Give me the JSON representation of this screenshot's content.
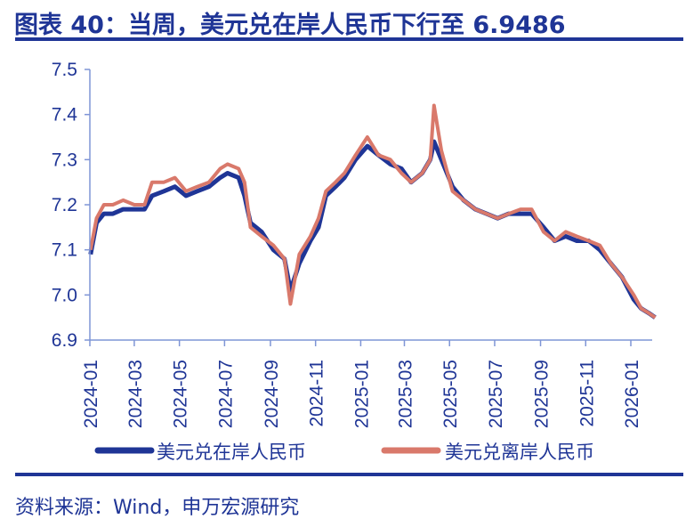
{
  "title": "图表 40：当周，美元兑在岸人民币下行至 6.9486",
  "source": "资料来源：Wind，申万宏源研究",
  "chart_data": {
    "type": "line",
    "title": "图表 40：当周，美元兑在岸人民币下行至 6.9486",
    "xlabel": "",
    "ylabel": "",
    "ylim": [
      6.9,
      7.5
    ],
    "yticks": [
      "6.9",
      "7.0",
      "7.1",
      "7.2",
      "7.3",
      "7.4",
      "7.5"
    ],
    "xticks": [
      "2024-01",
      "2024-03",
      "2024-05",
      "2024-07",
      "2024-09",
      "2024-11",
      "2025-01",
      "2025-03",
      "2025-05",
      "2025-07",
      "2025-09",
      "2025-11",
      "2026-01"
    ],
    "grid": false,
    "legend": "bottom",
    "x": [
      "2024-01-02",
      "2024-01-10",
      "2024-01-20",
      "2024-02-01",
      "2024-02-15",
      "2024-03-01",
      "2024-03-15",
      "2024-03-25",
      "2024-04-10",
      "2024-04-25",
      "2024-05-10",
      "2024-05-25",
      "2024-06-10",
      "2024-06-25",
      "2024-07-05",
      "2024-07-20",
      "2024-07-28",
      "2024-08-05",
      "2024-08-20",
      "2024-09-05",
      "2024-09-20",
      "2024-09-28",
      "2024-10-10",
      "2024-10-25",
      "2024-11-05",
      "2024-11-15",
      "2024-11-28",
      "2024-12-10",
      "2024-12-25",
      "2025-01-10",
      "2025-01-25",
      "2025-02-10",
      "2025-02-25",
      "2025-03-10",
      "2025-03-25",
      "2025-04-05",
      "2025-04-10",
      "2025-04-20",
      "2025-05-05",
      "2025-05-20",
      "2025-06-05",
      "2025-06-20",
      "2025-07-05",
      "2025-07-20",
      "2025-08-05",
      "2025-08-20",
      "2025-09-05",
      "2025-09-20",
      "2025-10-05",
      "2025-10-20",
      "2025-11-05",
      "2025-11-20",
      "2025-12-05",
      "2025-12-20",
      "2026-01-05",
      "2026-01-15",
      "2026-01-25",
      "2026-02-03"
    ],
    "series": [
      {
        "name": "美元兑在岸人民币",
        "color": "#1f3596",
        "values": [
          7.09,
          7.16,
          7.18,
          7.18,
          7.19,
          7.19,
          7.19,
          7.22,
          7.23,
          7.24,
          7.22,
          7.23,
          7.24,
          7.26,
          7.27,
          7.26,
          7.22,
          7.16,
          7.14,
          7.1,
          7.08,
          7.01,
          7.07,
          7.12,
          7.15,
          7.22,
          7.24,
          7.26,
          7.3,
          7.33,
          7.31,
          7.29,
          7.28,
          7.25,
          7.27,
          7.3,
          7.34,
          7.3,
          7.24,
          7.21,
          7.19,
          7.18,
          7.17,
          7.18,
          7.18,
          7.18,
          7.15,
          7.12,
          7.13,
          7.12,
          7.12,
          7.1,
          7.07,
          7.04,
          6.99,
          6.97,
          6.96,
          6.95
        ]
      },
      {
        "name": "美元兑离岸人民币",
        "color": "#d9796b",
        "values": [
          7.1,
          7.17,
          7.2,
          7.2,
          7.21,
          7.2,
          7.2,
          7.25,
          7.25,
          7.26,
          7.23,
          7.24,
          7.25,
          7.28,
          7.29,
          7.28,
          7.25,
          7.15,
          7.13,
          7.11,
          7.08,
          6.98,
          7.09,
          7.13,
          7.17,
          7.23,
          7.25,
          7.27,
          7.31,
          7.35,
          7.31,
          7.3,
          7.27,
          7.25,
          7.27,
          7.3,
          7.42,
          7.32,
          7.23,
          7.21,
          7.19,
          7.18,
          7.17,
          7.18,
          7.19,
          7.19,
          7.14,
          7.12,
          7.14,
          7.13,
          7.12,
          7.11,
          7.07,
          7.04,
          7.0,
          6.97,
          6.96,
          6.95
        ]
      }
    ]
  }
}
